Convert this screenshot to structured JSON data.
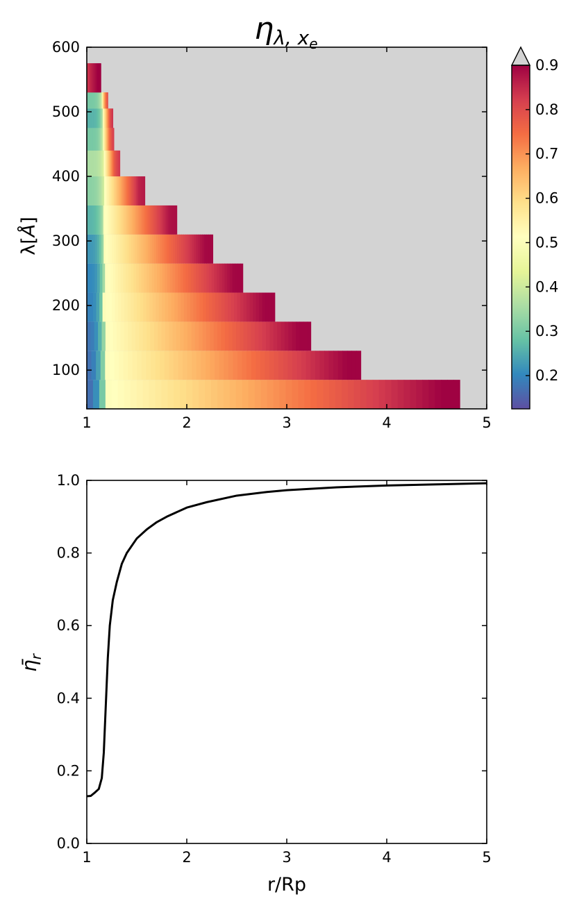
{
  "chart_data": [
    {
      "type": "heatmap",
      "title_main": "η",
      "title_sub": "λ, x",
      "title_subsub": "e",
      "ylabel_pre": "λ[",
      "ylabel_unit": "Å",
      "ylabel_post": "]",
      "xlim": [
        1,
        5
      ],
      "ylim": [
        40,
        600
      ],
      "xticks": [
        "1",
        "2",
        "3",
        "4",
        "5"
      ],
      "yticks": [
        "100",
        "200",
        "300",
        "400",
        "500",
        "600"
      ],
      "background_color": "#d3d3d3",
      "colorbar": {
        "range": [
          0.125,
          0.9
        ],
        "ticks": [
          "0.2",
          "0.3",
          "0.4",
          "0.5",
          "0.6",
          "0.7",
          "0.8",
          "0.9"
        ],
        "extend": "max",
        "colormap": "Spectral_r"
      },
      "bands": [
        {
          "y0": 40,
          "y1": 85,
          "xmax": 4.73,
          "eta_base": 0.15,
          "rise_center": 1.17,
          "rise_width": 0.05,
          "dip": 0.07,
          "dip_center": 1.7,
          "dip_width": 0.4,
          "far_width": 1.4
        },
        {
          "y0": 85,
          "y1": 130,
          "xmax": 3.74,
          "eta_base": 0.16,
          "rise_center": 1.17,
          "rise_width": 0.045,
          "dip": 0.06,
          "dip_center": 1.6,
          "dip_width": 0.35,
          "far_width": 1.1
        },
        {
          "y0": 130,
          "y1": 175,
          "xmax": 3.24,
          "eta_base": 0.17,
          "rise_center": 1.17,
          "rise_width": 0.04,
          "dip": 0.05,
          "dip_center": 1.5,
          "dip_width": 0.3,
          "far_width": 0.95
        },
        {
          "y0": 175,
          "y1": 220,
          "xmax": 2.88,
          "eta_base": 0.19,
          "rise_center": 1.17,
          "rise_width": 0.035,
          "dip": 0.04,
          "dip_center": 1.45,
          "dip_width": 0.25,
          "far_width": 0.8
        },
        {
          "y0": 220,
          "y1": 265,
          "xmax": 2.56,
          "eta_base": 0.2,
          "rise_center": 1.17,
          "rise_width": 0.03,
          "dip": 0.03,
          "dip_center": 1.4,
          "dip_width": 0.2,
          "far_width": 0.7
        },
        {
          "y0": 265,
          "y1": 310,
          "xmax": 2.26,
          "eta_base": 0.22,
          "rise_center": 1.17,
          "rise_width": 0.03,
          "dip": 0.02,
          "dip_center": 1.35,
          "dip_width": 0.2,
          "far_width": 0.6
        },
        {
          "y0": 310,
          "y1": 355,
          "xmax": 1.9,
          "eta_base": 0.26,
          "rise_center": 1.17,
          "rise_width": 0.03,
          "dip": 0.0,
          "dip_center": 1.3,
          "dip_width": 0.2,
          "far_width": 0.5
        },
        {
          "y0": 355,
          "y1": 400,
          "xmax": 1.58,
          "eta_base": 0.32,
          "rise_center": 1.17,
          "rise_width": 0.03,
          "dip": 0.0,
          "dip_center": 1.3,
          "dip_width": 0.2,
          "far_width": 0.35
        },
        {
          "y0": 400,
          "y1": 440,
          "xmax": 1.33,
          "eta_base": 0.36,
          "rise_center": 1.17,
          "rise_width": 0.025,
          "dip": 0.0,
          "dip_center": 1.3,
          "dip_width": 0.2,
          "far_width": 0.2
        },
        {
          "y0": 440,
          "y1": 475,
          "xmax": 1.27,
          "eta_base": 0.3,
          "rise_center": 1.16,
          "rise_width": 0.02,
          "dip": 0.0,
          "dip_center": 1.3,
          "dip_width": 0.2,
          "far_width": 0.15
        },
        {
          "y0": 475,
          "y1": 505,
          "xmax": 1.26,
          "eta_base": 0.26,
          "rise_center": 1.16,
          "rise_width": 0.02,
          "dip": 0.0,
          "dip_center": 1.3,
          "dip_width": 0.2,
          "far_width": 0.12
        },
        {
          "y0": 505,
          "y1": 530,
          "xmax": 1.21,
          "eta_base": 0.3,
          "rise_center": 1.15,
          "rise_width": 0.02,
          "dip": 0.0,
          "dip_center": 1.3,
          "dip_width": 0.2,
          "far_width": 0.1
        },
        {
          "y0": 530,
          "y1": 575,
          "xmax": 1.14,
          "eta_base": 0.88,
          "rise_center": 0.5,
          "rise_width": 0.02,
          "dip": 0.0,
          "dip_center": 1.3,
          "dip_width": 0.2,
          "far_width": 0.1
        }
      ]
    },
    {
      "type": "line",
      "xlabel": "r/Rp",
      "ylabel_main": "η̄",
      "ylabel_sub": "r",
      "xlim": [
        1,
        5
      ],
      "ylim": [
        0,
        1
      ],
      "xticks": [
        "1",
        "2",
        "3",
        "4",
        "5"
      ],
      "yticks": [
        "0.0",
        "0.2",
        "0.4",
        "0.6",
        "0.8",
        "1.0"
      ],
      "series": [
        {
          "x": [
            1.0,
            1.04,
            1.08,
            1.12,
            1.15,
            1.17,
            1.19,
            1.21,
            1.23,
            1.26,
            1.3,
            1.35,
            1.4,
            1.5,
            1.6,
            1.7,
            1.8,
            2.0,
            2.2,
            2.5,
            2.8,
            3.0,
            3.5,
            4.0,
            4.5,
            5.0
          ],
          "y": [
            0.13,
            0.131,
            0.14,
            0.15,
            0.18,
            0.25,
            0.38,
            0.51,
            0.6,
            0.67,
            0.72,
            0.77,
            0.8,
            0.84,
            0.865,
            0.885,
            0.9,
            0.925,
            0.94,
            0.958,
            0.968,
            0.973,
            0.981,
            0.986,
            0.989,
            0.992
          ]
        }
      ]
    }
  ]
}
